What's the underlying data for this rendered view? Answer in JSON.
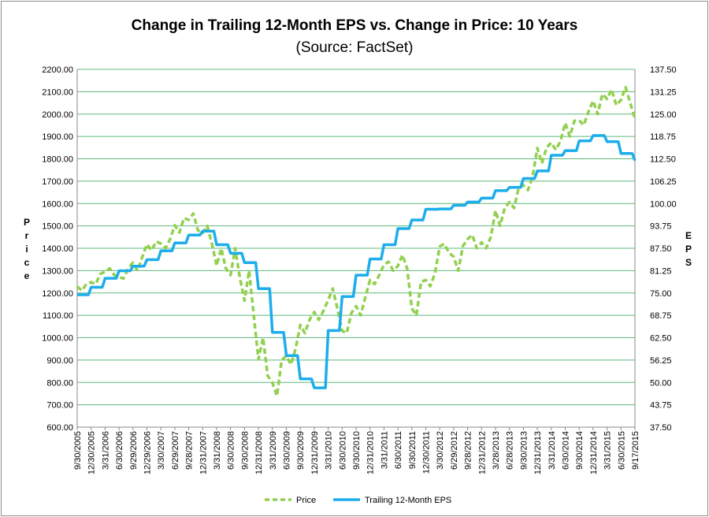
{
  "chart_data": {
    "type": "line",
    "title": "Change in Trailing 12-Month EPS vs. Change in Price: 10 Years",
    "subtitle": "(Source: FactSet)",
    "ylabel": "Price",
    "y2label": "EPS",
    "ylim": [
      600,
      2200
    ],
    "y2lim": [
      37.5,
      137.5
    ],
    "y_ticks": [
      "600.00",
      "700.00",
      "800.00",
      "900.00",
      "1000.00",
      "1100.00",
      "1200.00",
      "1300.00",
      "1400.00",
      "1500.00",
      "1600.00",
      "1700.00",
      "1800.00",
      "1900.00",
      "2000.00",
      "2100.00",
      "2200.00"
    ],
    "y2_ticks": [
      "37.50",
      "43.75",
      "50.00",
      "56.25",
      "62.50",
      "68.75",
      "75.00",
      "81.25",
      "87.50",
      "93.75",
      "100.00",
      "106.25",
      "112.50",
      "118.75",
      "125.00",
      "131.25",
      "137.50"
    ],
    "x_ticks": [
      "9/30/2005",
      "12/30/2005",
      "3/31/2006",
      "6/30/2006",
      "9/29/2006",
      "12/29/2006",
      "3/30/2007",
      "6/29/2007",
      "9/28/2007",
      "12/31/2007",
      "3/31/2008",
      "6/30/2008",
      "9/30/2008",
      "12/31/2008",
      "3/31/2009",
      "6/30/2009",
      "9/30/2009",
      "12/31/2009",
      "3/31/2010",
      "6/30/2010",
      "9/30/2010",
      "12/31/2010",
      "3/31/2011",
      "6/30/2011",
      "9/30/2011",
      "12/30/2011",
      "3/30/2012",
      "6/29/2012",
      "9/28/2012",
      "12/31/2012",
      "3/28/2013",
      "6/28/2013",
      "9/30/2013",
      "12/31/2013",
      "3/31/2014",
      "6/30/2014",
      "9/30/2014",
      "12/31/2014",
      "3/31/2015",
      "6/30/2015",
      "9/17/2015"
    ],
    "series": [
      {
        "name": "Price",
        "axis": "left",
        "color": "#92d050",
        "style": "dashed",
        "values": [
          1229,
          1248,
          1295,
          1270,
          1336,
          1418,
          1421,
          1503,
          1527,
          1468,
          1322,
          1280,
          1166,
          903,
          798,
          919,
          1057,
          1115,
          1169,
          1031,
          1141,
          1258,
          1326,
          1321,
          1131,
          1258,
          1408,
          1362,
          1441,
          1426,
          1569,
          1606,
          1682,
          1848,
          1872,
          1960,
          1972,
          2059,
          2068,
          2063,
          1980
        ],
        "y_ranges": [
          [
            1210,
            1240
          ],
          [
            1240,
            1285
          ],
          [
            1280,
            1310
          ],
          [
            1265,
            1310
          ],
          [
            1300,
            1360
          ],
          [
            1390,
            1430
          ],
          [
            1400,
            1440
          ],
          [
            1470,
            1535
          ],
          [
            1480,
            1555
          ],
          [
            1420,
            1500
          ],
          [
            1310,
            1400
          ],
          [
            1270,
            1400
          ],
          [
            1100,
            1300
          ],
          [
            830,
            1000
          ],
          [
            740,
            900
          ],
          [
            880,
            950
          ],
          [
            1020,
            1080
          ],
          [
            1080,
            1120
          ],
          [
            1130,
            1220
          ],
          [
            1020,
            1110
          ],
          [
            1100,
            1180
          ],
          [
            1240,
            1280
          ],
          [
            1300,
            1340
          ],
          [
            1310,
            1370
          ],
          [
            1100,
            1250
          ],
          [
            1230,
            1290
          ],
          [
            1380,
            1420
          ],
          [
            1300,
            1410
          ],
          [
            1400,
            1460
          ],
          [
            1400,
            1450
          ],
          [
            1500,
            1580
          ],
          [
            1580,
            1670
          ],
          [
            1660,
            1720
          ],
          [
            1780,
            1850
          ],
          [
            1840,
            1880
          ],
          [
            1900,
            1970
          ],
          [
            1950,
            2010
          ],
          [
            2000,
            2090
          ],
          [
            2040,
            2110
          ],
          [
            2050,
            2120
          ],
          [
            1960,
            2100
          ]
        ]
      },
      {
        "name": "Trailing 12-Month EPS",
        "axis": "right",
        "color": "#1cadec",
        "style": "solid",
        "values": [
          74.5,
          76.6,
          79.1,
          81.2,
          82.5,
          84.3,
          86.8,
          89.0,
          91.2,
          92.3,
          88.5,
          86.1,
          83.5,
          76.2,
          64.0,
          57.5,
          51.0,
          48.5,
          64.5,
          74.0,
          80.0,
          84.5,
          88.5,
          93.0,
          95.4,
          98.4,
          98.5,
          99.5,
          100.4,
          101.5,
          103.6,
          104.5,
          107.0,
          109.1,
          113.5,
          114.8,
          117.5,
          119.0,
          117.3,
          114.0,
          112.0
        ]
      }
    ],
    "legend": {
      "placement": "bottom-center",
      "items": [
        "Price",
        "Trailing 12-Month EPS"
      ]
    }
  }
}
